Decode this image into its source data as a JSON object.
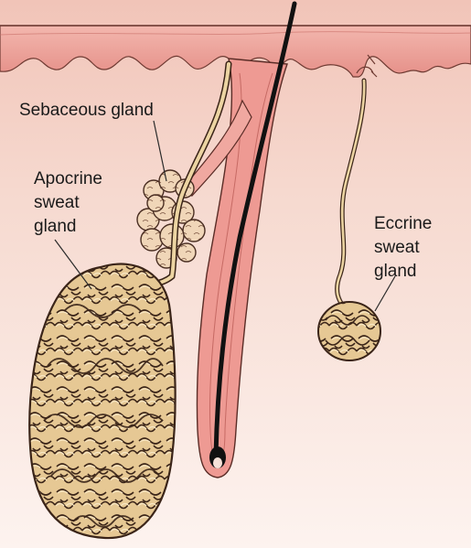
{
  "labels": {
    "sebaceous": "Sebaceous gland",
    "apocrine": [
      "Apocrine",
      "sweat",
      "gland"
    ],
    "eccrine": [
      "Eccrine",
      "sweat",
      "gland"
    ]
  },
  "colors": {
    "dermis_light": "#f7dcd2",
    "epidermis": "#e89c96",
    "follicle": "#ef9a94",
    "gland_fill": "#ebcf9f",
    "outline": "#3a2418"
  }
}
